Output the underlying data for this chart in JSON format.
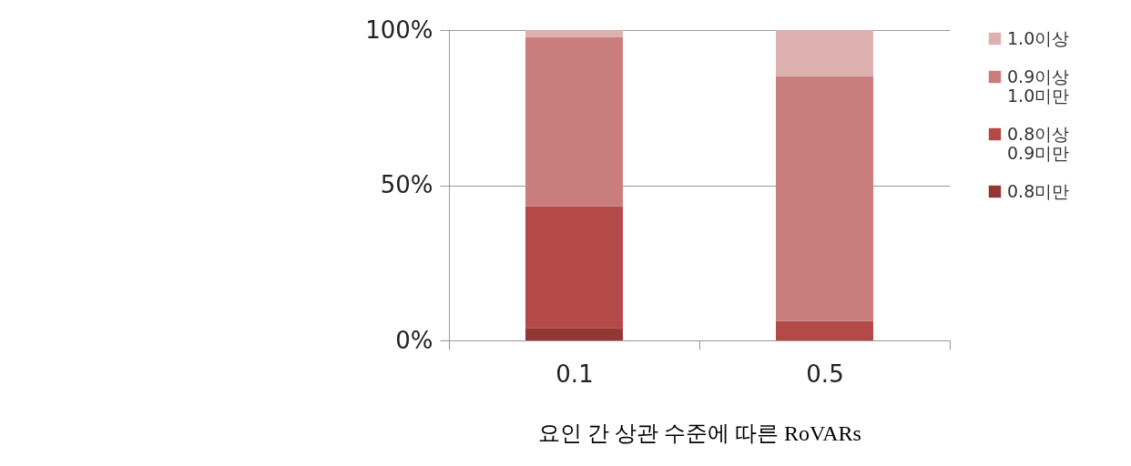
{
  "chart_data": {
    "type": "bar",
    "stacked": true,
    "categories": [
      "0.1",
      "0.5"
    ],
    "xlabel": "요인 간 상관 수준에 따른 RoVARs",
    "series": [
      {
        "name": "0.8미만",
        "color": "#943634",
        "values": [
          4.0,
          0
        ]
      },
      {
        "name": "0.8이상 0.9미만",
        "color": "#b44a48",
        "values": [
          39.2,
          6.2
        ]
      },
      {
        "name": "0.9이상 1.0미만",
        "color": "#c97d7c",
        "values": [
          54.5,
          79.0
        ]
      },
      {
        "name": "1.0이상",
        "color": "#dcb1b0",
        "values": [
          2.3,
          14.8
        ]
      }
    ],
    "ylim": [
      0,
      100
    ],
    "yticks": [
      {
        "value": 0,
        "label": "0%"
      },
      {
        "value": 50,
        "label": "50%"
      },
      {
        "value": 100,
        "label": "100%"
      }
    ],
    "grid": "y",
    "legend": "right"
  }
}
